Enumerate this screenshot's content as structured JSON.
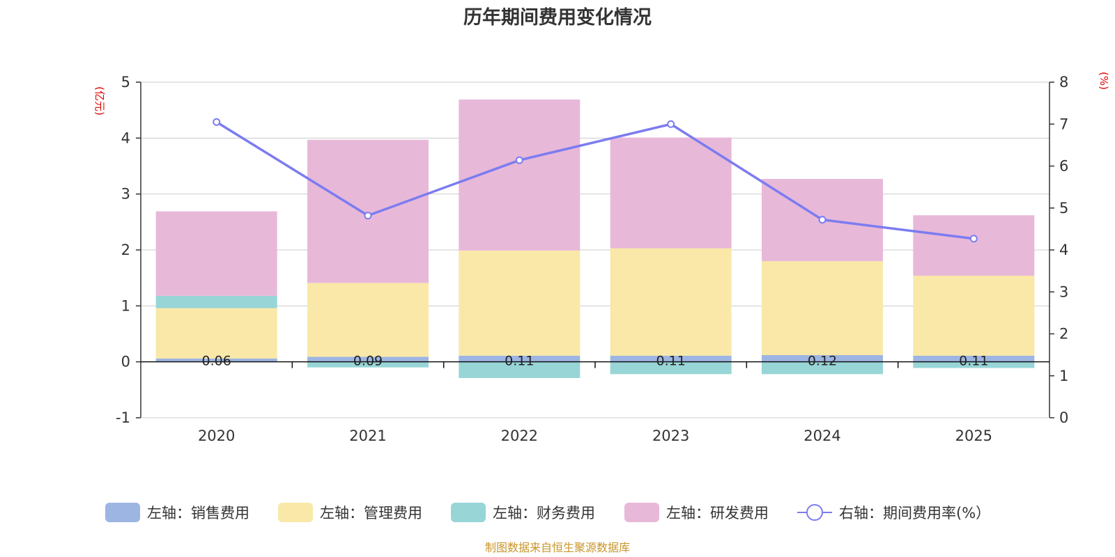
{
  "chart_data": {
    "type": "bar",
    "title": "历年期间费用变化情况",
    "left_unit": "(亿元)",
    "right_unit": "(%)",
    "categories": [
      "2020",
      "2021",
      "2022",
      "2023",
      "2024",
      "2025"
    ],
    "ylim_left": [
      -1,
      5
    ],
    "yticks_left": [
      -1,
      0,
      1,
      2,
      3,
      4,
      5
    ],
    "ylim_right": [
      0,
      8
    ],
    "yticks_right": [
      0,
      1,
      2,
      3,
      4,
      5,
      6,
      7,
      8
    ],
    "grid": true,
    "series": [
      {
        "name": "左轴：销售费用",
        "axis": "left",
        "kind": "bar",
        "color": "#9db5e2",
        "values": [
          0.06,
          0.09,
          0.11,
          0.11,
          0.12,
          0.11
        ],
        "labels": [
          "0.06",
          "0.09",
          "0.11",
          "0.11",
          "0.12",
          "0.11"
        ]
      },
      {
        "name": "左轴：管理费用",
        "axis": "left",
        "kind": "bar",
        "color": "#f9e8a8",
        "values": [
          0.9,
          1.32,
          1.88,
          1.92,
          1.68,
          1.43
        ]
      },
      {
        "name": "左轴：财务费用",
        "axis": "left",
        "kind": "bar",
        "color": "#98d5d6",
        "values": [
          0.22,
          -0.1,
          -0.29,
          -0.22,
          -0.22,
          -0.11
        ]
      },
      {
        "name": "左轴：研发费用",
        "axis": "left",
        "kind": "bar",
        "color": "#e8b8d9",
        "values": [
          1.51,
          2.56,
          2.7,
          1.98,
          1.47,
          1.08
        ]
      },
      {
        "name": "右轴：期间费用率(%）",
        "axis": "right",
        "kind": "line",
        "color": "#7b7cf0",
        "values": [
          7.05,
          4.82,
          6.14,
          7.0,
          4.72,
          4.27
        ]
      }
    ]
  },
  "footer": {
    "source": "制图数据来自恒生聚源数据库"
  }
}
